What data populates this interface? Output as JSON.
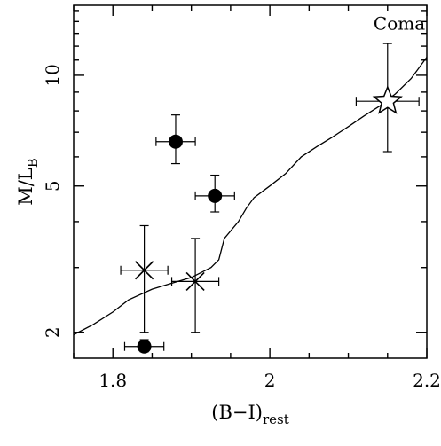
{
  "chart_data": {
    "type": "scatter",
    "title": "",
    "xlabel": {
      "main": "(B−I)",
      "sub": "rest"
    },
    "ylabel": {
      "main": "M/L",
      "sub": "B"
    },
    "xlim": [
      1.75,
      2.2
    ],
    "ylim": [
      1.7,
      15.5
    ],
    "yscale": "log",
    "grid": false,
    "x_ticks": [
      {
        "value": 1.8,
        "label": "1.8"
      },
      {
        "value": 2.0,
        "label": "2"
      },
      {
        "value": 2.2,
        "label": "2.2"
      }
    ],
    "y_ticks": [
      {
        "value": 2,
        "label": "2"
      },
      {
        "value": 5,
        "label": "5"
      },
      {
        "value": 10,
        "label": "10"
      }
    ],
    "annotations": [
      {
        "text": "Coma",
        "x": 2.165,
        "y": 13.3
      }
    ],
    "series": [
      {
        "marker": "filled-circle",
        "points": [
          {
            "x": 1.88,
            "y": 6.6,
            "xerr": [
              0.025,
              0.025
            ],
            "yerr": [
              0.85,
              1.2
            ]
          },
          {
            "x": 1.93,
            "y": 4.7,
            "xerr": [
              0.025,
              0.025
            ],
            "yerr": [
              0.45,
              0.65
            ]
          },
          {
            "x": 1.84,
            "y": 1.83,
            "xerr": [
              0.025,
              0.025
            ],
            "yerr": [
              0.06,
              0.08
            ]
          }
        ]
      },
      {
        "marker": "cross",
        "points": [
          {
            "x": 1.84,
            "y": 2.95,
            "xerr": [
              0.03,
              0.03
            ],
            "yerr": [
              0.95,
              0.95
            ]
          },
          {
            "x": 1.905,
            "y": 2.75,
            "xerr": [
              0.03,
              0.03
            ],
            "yerr": [
              0.75,
              0.85
            ]
          }
        ]
      },
      {
        "marker": "open-star",
        "points": [
          {
            "x": 2.15,
            "y": 8.5,
            "xerr": [
              0.04,
              0.04
            ],
            "yerr": [
              2.3,
              3.7
            ]
          }
        ]
      }
    ],
    "model_curve": {
      "points": [
        [
          1.75,
          1.97
        ],
        [
          1.775,
          2.1
        ],
        [
          1.8,
          2.27
        ],
        [
          1.82,
          2.45
        ],
        [
          1.85,
          2.62
        ],
        [
          1.875,
          2.72
        ],
        [
          1.9,
          2.82
        ],
        [
          1.925,
          3.0
        ],
        [
          1.935,
          3.15
        ],
        [
          1.942,
          3.6
        ],
        [
          1.96,
          4.0
        ],
        [
          1.97,
          4.35
        ],
        [
          1.98,
          4.65
        ],
        [
          2.0,
          5.0
        ],
        [
          2.02,
          5.4
        ],
        [
          2.04,
          6.0
        ],
        [
          2.06,
          6.4
        ],
        [
          2.08,
          6.8
        ],
        [
          2.1,
          7.25
        ],
        [
          2.12,
          7.75
        ],
        [
          2.14,
          8.25
        ],
        [
          2.16,
          8.9
        ],
        [
          2.18,
          9.8
        ],
        [
          2.2,
          11.2
        ]
      ]
    }
  }
}
